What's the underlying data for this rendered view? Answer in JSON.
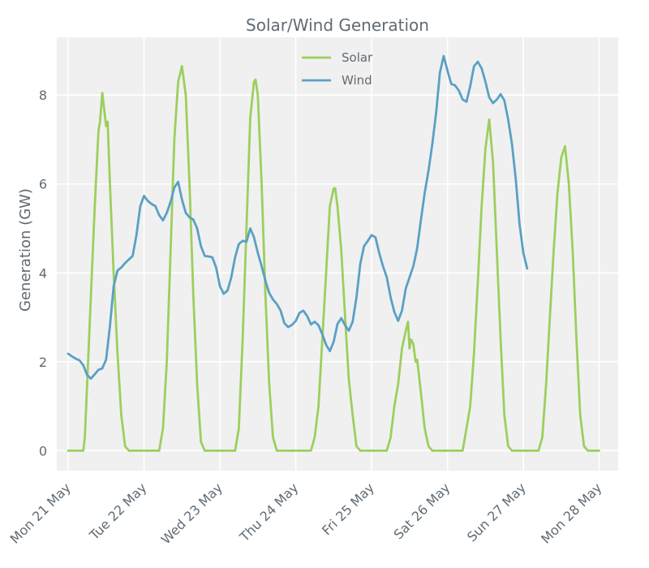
{
  "chart_data": {
    "type": "line",
    "title": "Solar/Wind Generation",
    "xlabel": "",
    "ylabel": "Generation (GW)",
    "xlim": [
      -0.15,
      7.25
    ],
    "ylim": [
      -0.45,
      9.3
    ],
    "grid": true,
    "legend_position": "top-center",
    "x_ticks": [
      {
        "value": 0,
        "label": "Mon 21 May"
      },
      {
        "value": 1,
        "label": "Tue 22 May"
      },
      {
        "value": 2,
        "label": "Wed 23 May"
      },
      {
        "value": 3,
        "label": "Thu 24 May"
      },
      {
        "value": 4,
        "label": "Fri 25 May"
      },
      {
        "value": 5,
        "label": "Sat 26 May"
      },
      {
        "value": 6,
        "label": "Sun 27 May"
      },
      {
        "value": 7,
        "label": "Mon 28 May"
      }
    ],
    "y_ticks": [
      {
        "value": 0,
        "label": "0"
      },
      {
        "value": 2,
        "label": "2"
      },
      {
        "value": 4,
        "label": "4"
      },
      {
        "value": 6,
        "label": "6"
      },
      {
        "value": 8,
        "label": "8"
      }
    ],
    "series": [
      {
        "name": "Solar",
        "color": "#9ccf5e",
        "points": [
          [
            0.0,
            0
          ],
          [
            0.2,
            0
          ],
          [
            0.22,
            0.3
          ],
          [
            0.25,
            1.5
          ],
          [
            0.3,
            3.5
          ],
          [
            0.35,
            5.5
          ],
          [
            0.4,
            7.2
          ],
          [
            0.42,
            7.4
          ],
          [
            0.45,
            8.05
          ],
          [
            0.48,
            7.6
          ],
          [
            0.5,
            7.3
          ],
          [
            0.52,
            7.4
          ],
          [
            0.55,
            6.0
          ],
          [
            0.6,
            4.0
          ],
          [
            0.65,
            2.2
          ],
          [
            0.7,
            0.8
          ],
          [
            0.75,
            0.1
          ],
          [
            0.8,
            0
          ],
          [
            1.2,
            0
          ],
          [
            1.25,
            0.5
          ],
          [
            1.3,
            2.0
          ],
          [
            1.35,
            4.5
          ],
          [
            1.4,
            7.0
          ],
          [
            1.45,
            8.3
          ],
          [
            1.5,
            8.65
          ],
          [
            1.55,
            8.0
          ],
          [
            1.6,
            6.0
          ],
          [
            1.65,
            3.5
          ],
          [
            1.7,
            1.5
          ],
          [
            1.75,
            0.2
          ],
          [
            1.8,
            0
          ],
          [
            2.2,
            0
          ],
          [
            2.25,
            0.5
          ],
          [
            2.3,
            2.5
          ],
          [
            2.35,
            5.0
          ],
          [
            2.4,
            7.5
          ],
          [
            2.45,
            8.3
          ],
          [
            2.47,
            8.35
          ],
          [
            2.5,
            8.0
          ],
          [
            2.55,
            6.0
          ],
          [
            2.6,
            3.5
          ],
          [
            2.65,
            1.5
          ],
          [
            2.7,
            0.3
          ],
          [
            2.75,
            0
          ],
          [
            3.2,
            0
          ],
          [
            3.25,
            0.3
          ],
          [
            3.3,
            1.0
          ],
          [
            3.35,
            2.5
          ],
          [
            3.4,
            4.0
          ],
          [
            3.45,
            5.5
          ],
          [
            3.5,
            5.9
          ],
          [
            3.52,
            5.9
          ],
          [
            3.55,
            5.5
          ],
          [
            3.6,
            4.5
          ],
          [
            3.65,
            3.0
          ],
          [
            3.7,
            1.6
          ],
          [
            3.75,
            0.8
          ],
          [
            3.8,
            0.1
          ],
          [
            3.85,
            0
          ],
          [
            4.2,
            0
          ],
          [
            4.25,
            0.3
          ],
          [
            4.3,
            1.0
          ],
          [
            4.35,
            1.5
          ],
          [
            4.4,
            2.3
          ],
          [
            4.45,
            2.7
          ],
          [
            4.48,
            2.9
          ],
          [
            4.5,
            2.3
          ],
          [
            4.52,
            2.5
          ],
          [
            4.55,
            2.4
          ],
          [
            4.58,
            2.0
          ],
          [
            4.6,
            2.05
          ],
          [
            4.65,
            1.3
          ],
          [
            4.7,
            0.5
          ],
          [
            4.75,
            0.1
          ],
          [
            4.8,
            0
          ],
          [
            5.2,
            0
          ],
          [
            5.25,
            0.5
          ],
          [
            5.3,
            1.0
          ],
          [
            5.35,
            2.2
          ],
          [
            5.4,
            3.8
          ],
          [
            5.45,
            5.5
          ],
          [
            5.5,
            6.8
          ],
          [
            5.55,
            7.45
          ],
          [
            5.6,
            6.5
          ],
          [
            5.65,
            4.5
          ],
          [
            5.7,
            2.5
          ],
          [
            5.75,
            0.8
          ],
          [
            5.8,
            0.1
          ],
          [
            5.85,
            0
          ],
          [
            6.2,
            0
          ],
          [
            6.25,
            0.3
          ],
          [
            6.3,
            1.5
          ],
          [
            6.35,
            3.0
          ],
          [
            6.4,
            4.5
          ],
          [
            6.45,
            5.8
          ],
          [
            6.5,
            6.6
          ],
          [
            6.55,
            6.85
          ],
          [
            6.6,
            6.0
          ],
          [
            6.65,
            4.5
          ],
          [
            6.7,
            2.5
          ],
          [
            6.75,
            0.8
          ],
          [
            6.8,
            0.1
          ],
          [
            6.85,
            0
          ],
          [
            7.0,
            0
          ]
        ]
      },
      {
        "name": "Wind",
        "color": "#5aa0c5",
        "points": [
          [
            0.0,
            2.18
          ],
          [
            0.05,
            2.12
          ],
          [
            0.1,
            2.07
          ],
          [
            0.15,
            2.03
          ],
          [
            0.2,
            1.92
          ],
          [
            0.25,
            1.7
          ],
          [
            0.3,
            1.62
          ],
          [
            0.35,
            1.72
          ],
          [
            0.4,
            1.82
          ],
          [
            0.45,
            1.85
          ],
          [
            0.5,
            2.05
          ],
          [
            0.55,
            2.8
          ],
          [
            0.6,
            3.7
          ],
          [
            0.65,
            4.05
          ],
          [
            0.7,
            4.12
          ],
          [
            0.75,
            4.22
          ],
          [
            0.8,
            4.3
          ],
          [
            0.85,
            4.38
          ],
          [
            0.9,
            4.85
          ],
          [
            0.95,
            5.5
          ],
          [
            1.0,
            5.73
          ],
          [
            1.05,
            5.62
          ],
          [
            1.1,
            5.55
          ],
          [
            1.15,
            5.5
          ],
          [
            1.2,
            5.3
          ],
          [
            1.25,
            5.18
          ],
          [
            1.3,
            5.35
          ],
          [
            1.35,
            5.6
          ],
          [
            1.4,
            5.92
          ],
          [
            1.45,
            6.05
          ],
          [
            1.5,
            5.65
          ],
          [
            1.55,
            5.35
          ],
          [
            1.6,
            5.25
          ],
          [
            1.65,
            5.2
          ],
          [
            1.7,
            5.0
          ],
          [
            1.75,
            4.6
          ],
          [
            1.8,
            4.38
          ],
          [
            1.85,
            4.37
          ],
          [
            1.9,
            4.35
          ],
          [
            1.95,
            4.12
          ],
          [
            2.0,
            3.7
          ],
          [
            2.05,
            3.53
          ],
          [
            2.1,
            3.6
          ],
          [
            2.15,
            3.9
          ],
          [
            2.2,
            4.35
          ],
          [
            2.25,
            4.65
          ],
          [
            2.3,
            4.72
          ],
          [
            2.35,
            4.7
          ],
          [
            2.4,
            5.0
          ],
          [
            2.45,
            4.8
          ],
          [
            2.5,
            4.45
          ],
          [
            2.55,
            4.15
          ],
          [
            2.6,
            3.82
          ],
          [
            2.65,
            3.55
          ],
          [
            2.7,
            3.4
          ],
          [
            2.75,
            3.3
          ],
          [
            2.8,
            3.15
          ],
          [
            2.85,
            2.87
          ],
          [
            2.9,
            2.78
          ],
          [
            2.95,
            2.83
          ],
          [
            3.0,
            2.92
          ],
          [
            3.05,
            3.1
          ],
          [
            3.1,
            3.15
          ],
          [
            3.15,
            3.03
          ],
          [
            3.2,
            2.84
          ],
          [
            3.25,
            2.9
          ],
          [
            3.3,
            2.82
          ],
          [
            3.35,
            2.62
          ],
          [
            3.4,
            2.38
          ],
          [
            3.45,
            2.24
          ],
          [
            3.5,
            2.45
          ],
          [
            3.55,
            2.85
          ],
          [
            3.6,
            2.98
          ],
          [
            3.65,
            2.82
          ],
          [
            3.7,
            2.7
          ],
          [
            3.75,
            2.9
          ],
          [
            3.8,
            3.45
          ],
          [
            3.85,
            4.2
          ],
          [
            3.9,
            4.6
          ],
          [
            3.95,
            4.72
          ],
          [
            4.0,
            4.85
          ],
          [
            4.05,
            4.8
          ],
          [
            4.1,
            4.45
          ],
          [
            4.15,
            4.15
          ],
          [
            4.2,
            3.9
          ],
          [
            4.25,
            3.45
          ],
          [
            4.3,
            3.12
          ],
          [
            4.35,
            2.92
          ],
          [
            4.4,
            3.15
          ],
          [
            4.45,
            3.65
          ],
          [
            4.5,
            3.9
          ],
          [
            4.55,
            4.15
          ],
          [
            4.6,
            4.55
          ],
          [
            4.65,
            5.2
          ],
          [
            4.7,
            5.8
          ],
          [
            4.75,
            6.3
          ],
          [
            4.8,
            6.9
          ],
          [
            4.85,
            7.6
          ],
          [
            4.9,
            8.5
          ],
          [
            4.95,
            8.88
          ],
          [
            5.0,
            8.55
          ],
          [
            5.05,
            8.25
          ],
          [
            5.1,
            8.22
          ],
          [
            5.15,
            8.1
          ],
          [
            5.2,
            7.9
          ],
          [
            5.25,
            7.85
          ],
          [
            5.3,
            8.2
          ],
          [
            5.35,
            8.65
          ],
          [
            5.4,
            8.75
          ],
          [
            5.45,
            8.6
          ],
          [
            5.5,
            8.3
          ],
          [
            5.55,
            7.95
          ],
          [
            5.6,
            7.82
          ],
          [
            5.65,
            7.9
          ],
          [
            5.7,
            8.02
          ],
          [
            5.75,
            7.88
          ],
          [
            5.8,
            7.45
          ],
          [
            5.85,
            6.9
          ],
          [
            5.9,
            6.1
          ],
          [
            5.95,
            5.1
          ],
          [
            6.0,
            4.45
          ],
          [
            6.05,
            4.1
          ]
        ]
      }
    ]
  }
}
